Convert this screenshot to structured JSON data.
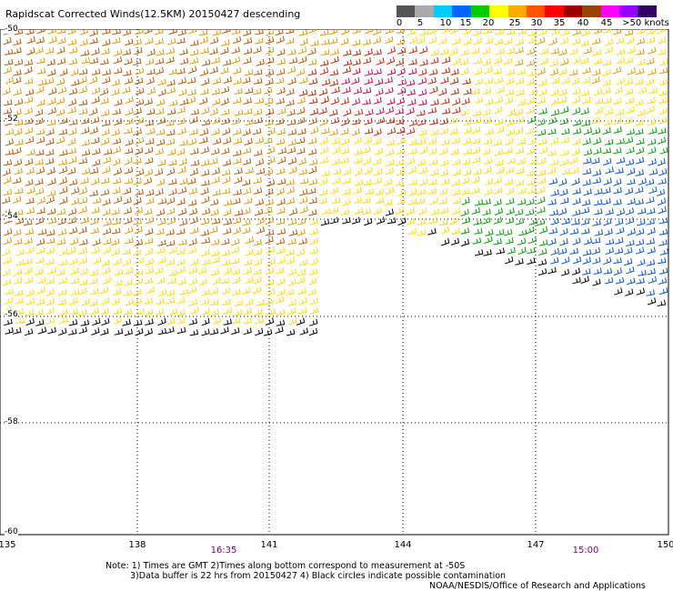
{
  "title": "Rapidscat Corrected Winds(12.5KM) 20150427 descending",
  "legend": {
    "colors": [
      "#555555",
      "#aaaaaa",
      "#00ccff",
      "#0066ff",
      "#00cc00",
      "#ffff00",
      "#ffaa00",
      "#ff5500",
      "#ff0000",
      "#990000",
      "#994400",
      "#ff00ff",
      "#9900ff",
      "#330066"
    ],
    "labels": [
      "0",
      "5",
      "10",
      "15",
      "20",
      "25",
      "30",
      "35",
      "40",
      "45",
      ">50 knots"
    ]
  },
  "axes": {
    "x_ticks": [
      "135",
      "138",
      "141",
      "144",
      "147",
      "150"
    ],
    "y_ticks": [
      "-50",
      "-52",
      "-54",
      "-56",
      "-58",
      "-60"
    ],
    "times": [
      "16:35",
      "15:00"
    ]
  },
  "notes": {
    "line1": "Note: 1) Times are GMT 2)Times along bottom correspond to measurement at -50S",
    "line2": "3)Data buffer is 22 hrs from 20150427 4) Black circles indicate possible contamination",
    "line3": "NOAA/NESDIS/Office of Research and Applications"
  },
  "wind_colors": {
    "yellow": "#ffd800",
    "orange": "#e39a00",
    "dark_orange": "#c05500",
    "red": "#cc2200",
    "magenta": "#d4004e",
    "green": "#00a000",
    "blue": "#0055dd",
    "black": "#000000"
  }
}
